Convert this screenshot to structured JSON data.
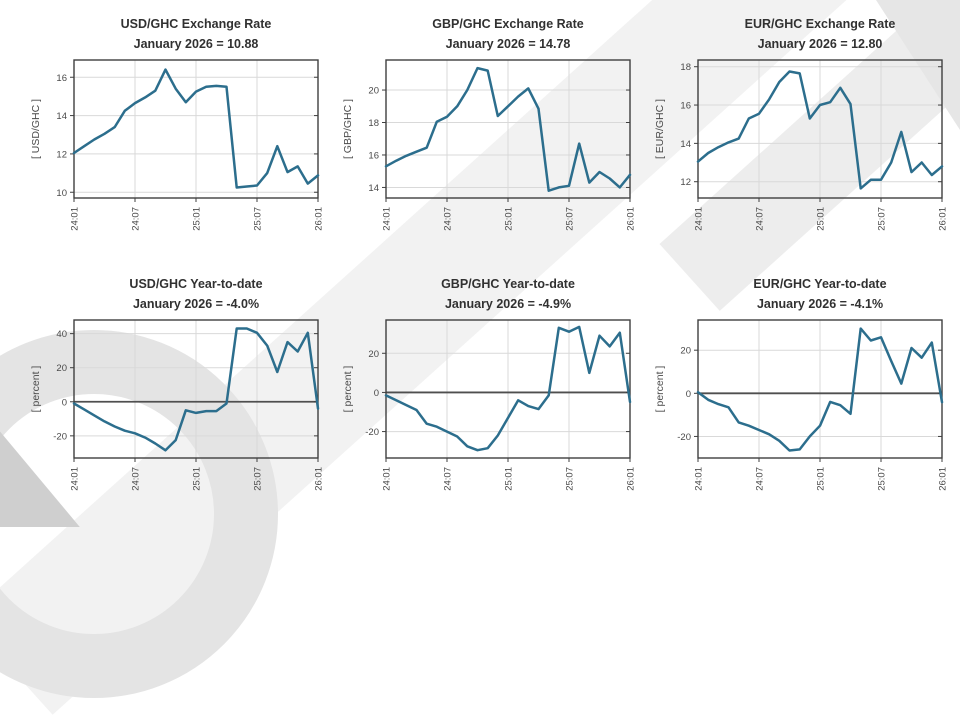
{
  "watermark": {
    "band1_color": "#f2f2f2",
    "band2_color": "#ededed",
    "ring_color": "#e4e4e4",
    "wedge_color": "#cfcfcf",
    "tri_color": "#e6e6e6"
  },
  "chart_data": [
    {
      "type": "line",
      "title": "USD/GHC Exchange Rate",
      "subtitle": "January 2026 = 10.88",
      "ylabel": "[ USD/GHC ]",
      "line_color": "#2C6E8D",
      "x_tick_labels": [
        "24:01",
        "24:07",
        "25:01",
        "25:07",
        "26:01"
      ],
      "x_tick_positions": [
        0,
        6,
        12,
        18,
        24
      ],
      "xlim": [
        0,
        24
      ],
      "yticks": [
        10,
        12,
        14,
        16
      ],
      "ylim": [
        9.7,
        16.9
      ],
      "zero_line": false,
      "grid": true,
      "values": [
        12.05,
        12.4,
        12.75,
        13.05,
        13.4,
        14.25,
        14.65,
        14.95,
        15.3,
        16.4,
        15.4,
        14.7,
        15.25,
        15.5,
        15.55,
        15.5,
        10.25,
        10.3,
        10.35,
        11.0,
        12.4,
        11.05,
        11.35,
        10.45,
        10.88
      ]
    },
    {
      "type": "line",
      "title": "GBP/GHC Exchange Rate",
      "subtitle": "January 2026 = 14.78",
      "ylabel": "[ GBP/GHC ]",
      "line_color": "#2C6E8D",
      "x_tick_labels": [
        "24:01",
        "24:07",
        "25:01",
        "25:07",
        "26:01"
      ],
      "x_tick_positions": [
        0,
        6,
        12,
        18,
        24
      ],
      "xlim": [
        0,
        24
      ],
      "yticks": [
        14,
        16,
        18,
        20
      ],
      "ylim": [
        13.35,
        21.85
      ],
      "zero_line": false,
      "grid": true,
      "values": [
        15.3,
        15.65,
        15.95,
        16.2,
        16.45,
        18.05,
        18.35,
        19.0,
        20.0,
        21.35,
        21.2,
        18.4,
        19.0,
        19.6,
        20.1,
        18.85,
        13.8,
        14.0,
        14.1,
        16.7,
        14.3,
        14.95,
        14.55,
        14.0,
        14.78
      ]
    },
    {
      "type": "line",
      "title": "EUR/GHC Exchange Rate",
      "subtitle": "January 2026 = 12.80",
      "ylabel": "[ EUR/GHC ]",
      "line_color": "#2C6E8D",
      "x_tick_labels": [
        "24:01",
        "24:07",
        "25:01",
        "25:07",
        "26:01"
      ],
      "x_tick_positions": [
        0,
        6,
        12,
        18,
        24
      ],
      "xlim": [
        0,
        24
      ],
      "yticks": [
        12,
        14,
        16,
        18
      ],
      "ylim": [
        11.15,
        18.35
      ],
      "zero_line": false,
      "grid": true,
      "values": [
        13.05,
        13.5,
        13.8,
        14.05,
        14.25,
        15.3,
        15.55,
        16.3,
        17.2,
        17.75,
        17.65,
        15.3,
        16.0,
        16.15,
        16.9,
        16.05,
        11.65,
        12.1,
        12.1,
        13.0,
        14.6,
        12.5,
        13.0,
        12.35,
        12.8
      ]
    },
    {
      "type": "line",
      "title": "USD/GHC Year-to-date",
      "subtitle": "January 2026 = -4.0%",
      "ylabel": "[ percent ]",
      "line_color": "#2C6E8D",
      "x_tick_labels": [
        "24:01",
        "24:07",
        "25:01",
        "25:07",
        "26:01"
      ],
      "x_tick_positions": [
        0,
        6,
        12,
        18,
        24
      ],
      "xlim": [
        0,
        24
      ],
      "yticks": [
        -20,
        0,
        20,
        40
      ],
      "ylim": [
        -33,
        48
      ],
      "zero_line": true,
      "grid": true,
      "values": [
        -1,
        -4.5,
        -8,
        -11.5,
        -14.5,
        -17,
        -18.5,
        -21,
        -24.5,
        -28.5,
        -22.5,
        -5,
        -6.5,
        -5.5,
        -5.5,
        -1,
        43,
        43,
        40.5,
        33,
        17.5,
        35,
        29.5,
        40.5,
        -4
      ]
    },
    {
      "type": "line",
      "title": "GBP/GHC Year-to-date",
      "subtitle": "January 2026 = -4.9%",
      "ylabel": "[ percent ]",
      "line_color": "#2C6E8D",
      "x_tick_labels": [
        "24:01",
        "24:07",
        "25:01",
        "25:07",
        "26:01"
      ],
      "x_tick_positions": [
        0,
        6,
        12,
        18,
        24
      ],
      "xlim": [
        0,
        24
      ],
      "yticks": [
        -20,
        0,
        20
      ],
      "ylim": [
        -33.5,
        37
      ],
      "zero_line": true,
      "grid": true,
      "values": [
        -1.5,
        -4,
        -6.5,
        -9,
        -16,
        -17.5,
        -20,
        -22.5,
        -27.5,
        -29.5,
        -28.5,
        -22,
        -13,
        -4,
        -7,
        -8.5,
        -1.5,
        33,
        31,
        33.5,
        10,
        29,
        23.5,
        30.5,
        -4.9
      ]
    },
    {
      "type": "line",
      "title": "EUR/GHC Year-to-date",
      "subtitle": "January 2026 = -4.1%",
      "ylabel": "[ percent ]",
      "line_color": "#2C6E8D",
      "x_tick_labels": [
        "24:01",
        "24:07",
        "25:01",
        "25:07",
        "26:01"
      ],
      "x_tick_positions": [
        0,
        6,
        12,
        18,
        24
      ],
      "xlim": [
        0,
        24
      ],
      "yticks": [
        -20,
        0,
        20
      ],
      "ylim": [
        -30,
        34
      ],
      "zero_line": true,
      "grid": true,
      "values": [
        0.5,
        -3,
        -5,
        -6.5,
        -13.5,
        -15,
        -17,
        -19,
        -22,
        -26.5,
        -26,
        -20,
        -15,
        -4,
        -5.5,
        -9.5,
        30,
        24.5,
        26,
        15,
        4.5,
        21,
        16.5,
        23.5,
        -4.1
      ]
    }
  ]
}
